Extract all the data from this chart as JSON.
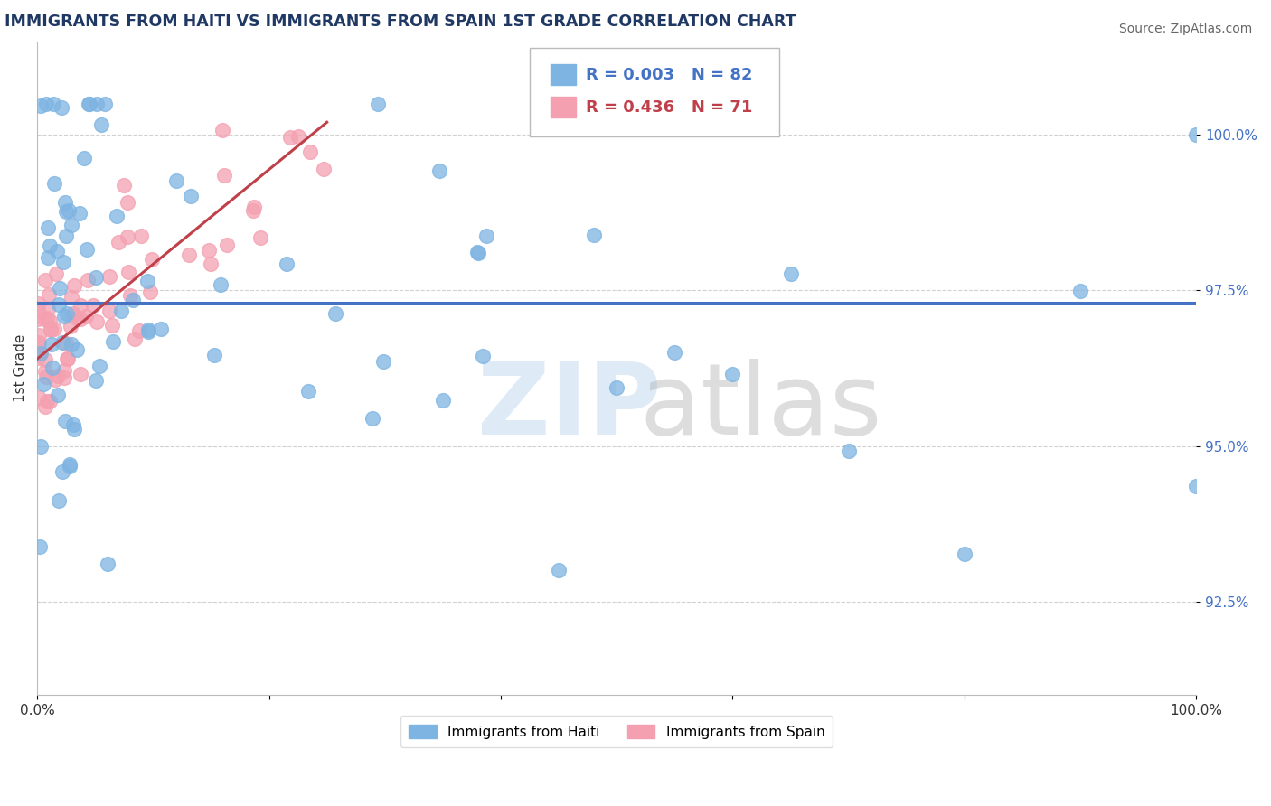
{
  "title": "IMMIGRANTS FROM HAITI VS IMMIGRANTS FROM SPAIN 1ST GRADE CORRELATION CHART",
  "source": "Source: ZipAtlas.com",
  "xlabel_haiti": "Immigrants from Haiti",
  "xlabel_spain": "Immigrants from Spain",
  "ylabel": "1st Grade",
  "xlim": [
    0.0,
    100.0
  ],
  "ylim": [
    91.0,
    101.5
  ],
  "yticks": [
    92.5,
    95.0,
    97.5,
    100.0
  ],
  "ytick_labels": [
    "92.5%",
    "95.0%",
    "97.5%",
    "100.0%"
  ],
  "haiti_color": "#7EB4E2",
  "spain_color": "#F4A0B0",
  "haiti_line_color": "#4472C4",
  "spain_line_color": "#C0404A",
  "haiti_R": 0.003,
  "haiti_N": 82,
  "spain_R": 0.436,
  "spain_N": 71,
  "watermark_zip": "ZIP",
  "watermark_atlas": "atlas",
  "haiti_reg_y": 97.3
}
